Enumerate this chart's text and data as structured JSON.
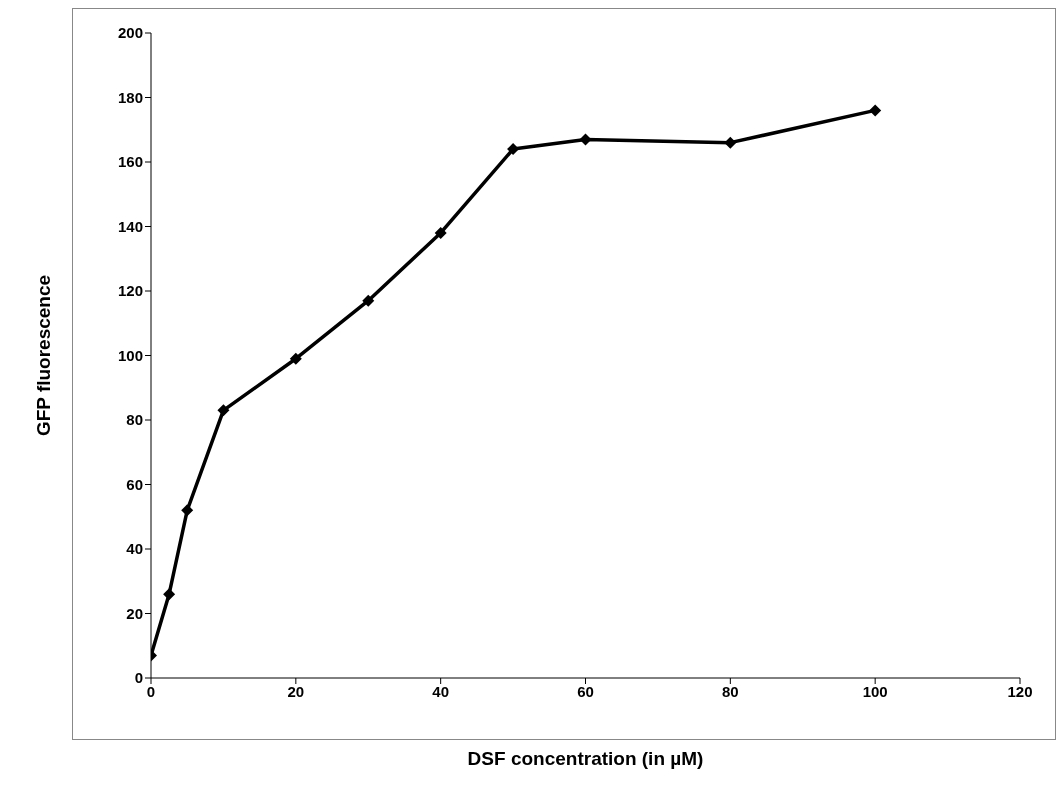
{
  "chart_data": {
    "type": "line",
    "xlabel": "DSF concentration (in µM)",
    "ylabel": "GFP fluorescence",
    "x": [
      0,
      2.5,
      5,
      10,
      20,
      30,
      40,
      50,
      60,
      80,
      100
    ],
    "series": [
      {
        "color": "#000000",
        "values": [
          7,
          26,
          52,
          83,
          99,
          117,
          138,
          164,
          167,
          166,
          176
        ]
      }
    ],
    "xlim": [
      0,
      120
    ],
    "xticks": [
      0,
      20,
      40,
      60,
      80,
      100,
      120
    ],
    "ylim": [
      0,
      200
    ],
    "yticks": [
      0,
      20,
      40,
      60,
      80,
      100,
      120,
      140,
      160,
      180,
      200
    ],
    "marker": "diamond",
    "line_style": "solid"
  }
}
